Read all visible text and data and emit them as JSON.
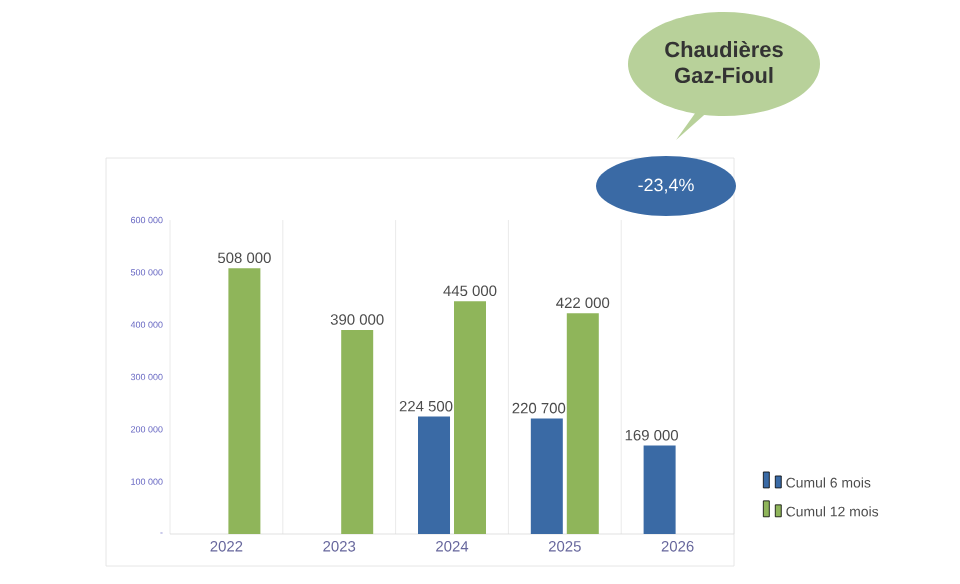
{
  "chart_data": {
    "type": "bar",
    "title": "Chaudières Gaz-Fioul",
    "annotations": [
      "-23,4%"
    ],
    "categories": [
      "2022",
      "2023",
      "2024",
      "2025",
      "2026"
    ],
    "series": [
      {
        "name": "Cumul 6 mois",
        "color": "#3a6aa5",
        "values": [
          null,
          null,
          224500,
          220700,
          169000
        ],
        "value_labels": [
          null,
          null,
          "224 500",
          "220 700",
          "169 000"
        ]
      },
      {
        "name": "Cumul 12 mois",
        "color": "#8fb55a",
        "values": [
          508000,
          390000,
          445000,
          422000,
          null
        ],
        "value_labels": [
          "508 000",
          "390 000",
          "445 000",
          "422 000",
          null
        ]
      }
    ],
    "ylim": [
      0,
      600000
    ],
    "yticks": [
      {
        "value": 0,
        "label": "-"
      },
      {
        "value": 100000,
        "label": "100 000"
      },
      {
        "value": 200000,
        "label": "200 000"
      },
      {
        "value": 300000,
        "label": "300 000"
      },
      {
        "value": 400000,
        "label": "400 000"
      },
      {
        "value": 500000,
        "label": "500 000"
      },
      {
        "value": 600000,
        "label": "600 000"
      }
    ],
    "grid": "x",
    "legend": "bottom right"
  }
}
